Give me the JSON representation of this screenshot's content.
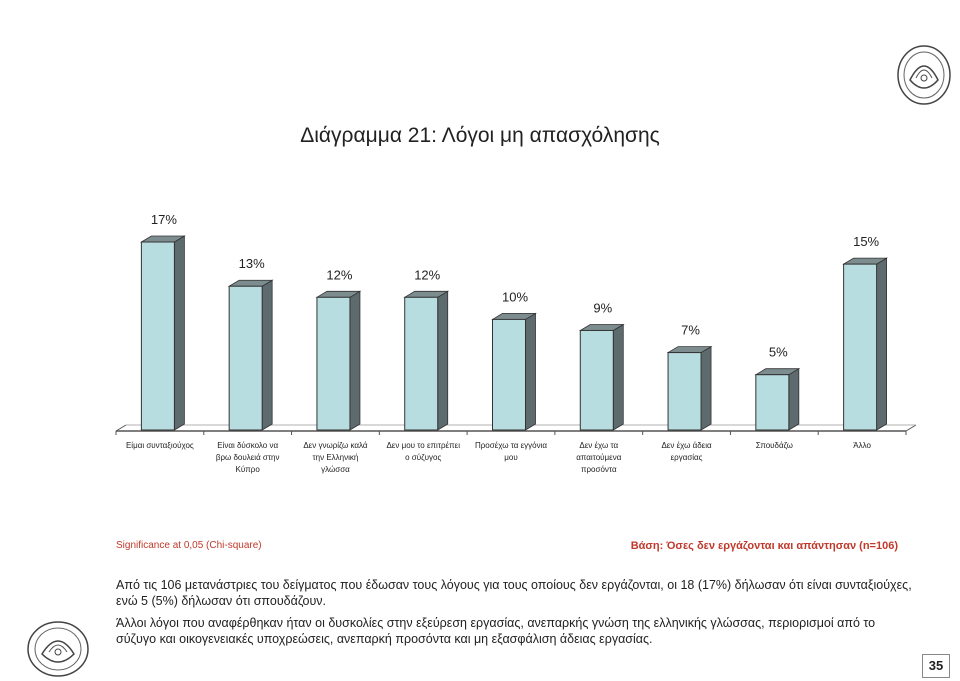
{
  "page": {
    "title": "Διάγραμμα 21: Λόγοι μη απασχόλησης",
    "significance": "Significance at 0,05 (Chi-square)",
    "base": "Βάση: Όσες δεν εργάζονται και απάντησαν (n=106)",
    "paragraph1": "Από τις 106 μετανάστριες του δείγματος που έδωσαν τους λόγους για τους οποίους δεν εργάζονται, οι 18 (17%) δήλωσαν ότι είναι συνταξιούχες, ενώ 5 (5%) δήλωσαν ότι σπουδάζουν.",
    "paragraph2": "Άλλοι λόγοι που αναφέρθηκαν ήταν οι δυσκολίες στην εξεύρεση εργασίας, ανεπαρκής γνώση της ελληνικής γλώσσας, περιορισμοί από το σύζυγο και οικογενειακές υποχρεώσεις, ανεπαρκή προσόντα και μη εξασφάλιση  άδειας εργασίας.",
    "page_number": "35",
    "logo_icon": "seal-logo-icon"
  },
  "chart_data": {
    "type": "bar",
    "title": "Διάγραμμα 21: Λόγοι μη απασχόλησης",
    "categories": [
      [
        "Είμαι συνταξιούχος"
      ],
      [
        "Είναι δύσκολο να",
        "βρω δουλειά στην",
        "Κύπρο"
      ],
      [
        "Δεν γνωρίζω καλά",
        "την Ελληνική",
        "γλώσσα"
      ],
      [
        "Δεν μου το επιτρέπει",
        "ο σύζυγος"
      ],
      [
        "Προσέχω τα εγγόνια",
        "μου"
      ],
      [
        "Δεν έχω τα",
        "απαιτούμενα",
        "προσόντα"
      ],
      [
        "Δεν έχω άδεια",
        "εργασίας"
      ],
      [
        "Σπουδάζω"
      ],
      [
        "Άλλο"
      ]
    ],
    "values": [
      17,
      13,
      12,
      12,
      10,
      9,
      7,
      5,
      15
    ],
    "value_labels": [
      "17%",
      "13%",
      "12%",
      "12%",
      "10%",
      "9%",
      "7%",
      "5%",
      "15%"
    ],
    "ylim": [
      0,
      18
    ],
    "grid": false,
    "legend": "none",
    "colors": {
      "bar_front": "#b8dde1",
      "bar_side": "#5d6b6e",
      "bar_outline": "#333333",
      "axis": "#555555"
    }
  }
}
